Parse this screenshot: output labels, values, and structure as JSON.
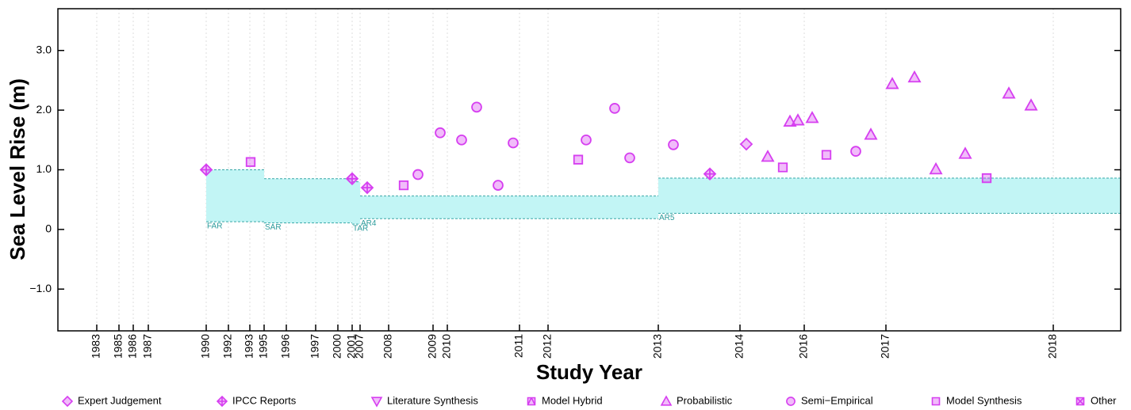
{
  "chart_data": {
    "type": "scatter",
    "x_label": "Study Year",
    "y_label": "Sea Level Rise (m)",
    "xlim": [
      0,
      134
    ],
    "ylim": [
      -1.7,
      3.7
    ],
    "xticks": [
      {
        "value": 4.9,
        "label": "1983"
      },
      {
        "value": 7.7,
        "label": "1985"
      },
      {
        "value": 9.5,
        "label": "1986"
      },
      {
        "value": 11.4,
        "label": "1987"
      },
      {
        "value": 18.7,
        "label": "1990"
      },
      {
        "value": 21.5,
        "label": "1992"
      },
      {
        "value": 24.2,
        "label": "1993"
      },
      {
        "value": 26,
        "label": "1995"
      },
      {
        "value": 28.8,
        "label": "1996"
      },
      {
        "value": 32.5,
        "label": "1997"
      },
      {
        "value": 35.3,
        "label": "2000"
      },
      {
        "value": 37.1,
        "label": "2001"
      },
      {
        "value": 38.1,
        "label": "2007"
      },
      {
        "value": 41.7,
        "label": "2008"
      },
      {
        "value": 47.3,
        "label": "2009"
      },
      {
        "value": 49.1,
        "label": "2010"
      },
      {
        "value": 58.2,
        "label": "2011"
      },
      {
        "value": 61.8,
        "label": "2012"
      },
      {
        "value": 75.7,
        "label": "2013"
      },
      {
        "value": 86,
        "label": "2014"
      },
      {
        "value": 94.1,
        "label": "2016"
      },
      {
        "value": 104.4,
        "label": "2017"
      },
      {
        "value": 125.5,
        "label": "2018"
      }
    ],
    "yticks": [
      {
        "value": -1,
        "label": "−1.0"
      },
      0,
      {
        "value": 1,
        "label": "1.0"
      },
      {
        "value": 2,
        "label": "2.0"
      },
      {
        "value": 3,
        "label": "3.0"
      }
    ],
    "grid": true,
    "ranges": [
      {
        "label": "FAR",
        "x": [
          18.7,
          26
        ],
        "y": [
          0.13,
          1.0
        ]
      },
      {
        "label": "SAR",
        "x": [
          26,
          37.1
        ],
        "y": [
          0.11,
          0.85
        ]
      },
      {
        "label": "TAR",
        "x": [
          37.1,
          38.1
        ],
        "y": [
          0.09,
          0.8
        ]
      },
      {
        "label": "AR4",
        "x": [
          38.1,
          75.7
        ],
        "y": [
          0.18,
          0.56
        ]
      },
      {
        "label": "AR5",
        "x": [
          75.7,
          134
        ],
        "y": [
          0.27,
          0.86
        ]
      }
    ],
    "range_color": "#c2f5f5",
    "series": [
      {
        "name": "Expert Judgement",
        "marker": "diamond",
        "color": "#d63ff0",
        "x": [
          86.8
        ],
        "values": [
          1.43
        ]
      },
      {
        "name": "IPCC Reports",
        "marker": "diamond-plus",
        "color": "#d63ff0",
        "x": [
          18.7,
          37.1,
          39.0,
          82.2
        ],
        "values": [
          1.0,
          0.85,
          0.7,
          0.93
        ]
      },
      {
        "name": "Literature Synthesis",
        "marker": "triangle-down",
        "color": "#d63ff0",
        "x": [],
        "values": []
      },
      {
        "name": "Model Hybrid",
        "marker": "square-triangle",
        "color": "#d63ff0",
        "x": [],
        "values": []
      },
      {
        "name": "Probabilistic",
        "marker": "triangle",
        "color": "#d63ff0",
        "x": [
          89.5,
          92.3,
          93.3,
          95.1,
          102.5,
          105.2,
          108,
          110.7,
          114.4,
          119.9,
          122.7
        ],
        "values": [
          1.22,
          1.81,
          1.83,
          1.87,
          1.59,
          2.44,
          2.55,
          1.01,
          1.27,
          2.28,
          2.08
        ]
      },
      {
        "name": "Semi−Empirical",
        "marker": "circle",
        "color": "#d63ff0",
        "x": [
          45.4,
          48.2,
          50.9,
          52.8,
          55.5,
          57.4,
          66.6,
          70.2,
          72.1,
          77.6,
          100.6
        ],
        "values": [
          0.92,
          1.62,
          1.5,
          2.05,
          0.74,
          1.45,
          1.5,
          2.03,
          1.2,
          1.42,
          1.31
        ]
      },
      {
        "name": "Model Synthesis",
        "marker": "square",
        "color": "#d63ff0",
        "x": [
          24.3,
          43.6,
          65.6,
          91.4,
          96.9,
          117.1
        ],
        "values": [
          1.13,
          0.74,
          1.17,
          1.04,
          1.25,
          0.86
        ]
      },
      {
        "name": "Other",
        "marker": "square-x",
        "color": "#d63ff0",
        "x": [],
        "values": []
      }
    ]
  }
}
